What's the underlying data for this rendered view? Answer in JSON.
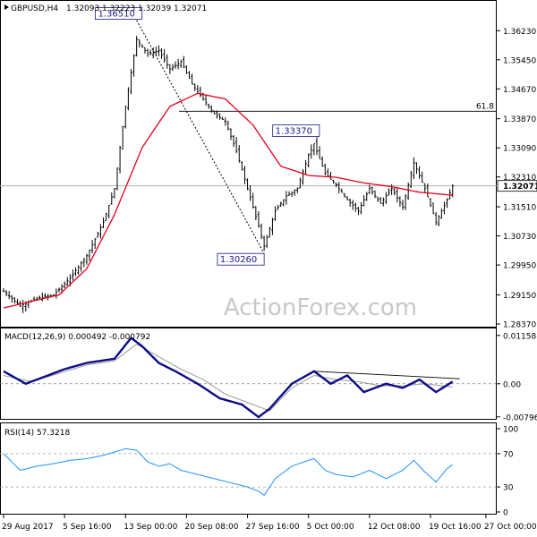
{
  "chart_data": [
    {
      "type": "candlestick",
      "header": {
        "symbol": "GBPUSD,H4",
        "ohlc": [
          "1.32093",
          "1.32223",
          "1.32039",
          "1.32071"
        ]
      },
      "watermark": "ActionForex.com",
      "ylim": [
        1.2837,
        1.3662
      ],
      "y_ticks": [
        "1.36230",
        "1.35450",
        "1.34670",
        "1.33870",
        "1.33090",
        "1.32310",
        "1.31510",
        "1.30730",
        "1.29950",
        "1.29150",
        "1.28370"
      ],
      "y_tick_values": [
        1.3623,
        1.3545,
        1.3467,
        1.3387,
        1.3309,
        1.3231,
        1.3151,
        1.3073,
        1.2995,
        1.2915,
        1.2837
      ],
      "current_price_label": "1.32071",
      "current_price": 1.32071,
      "fib_level": {
        "label": "61.8",
        "value": 1.3407
      },
      "annotations": [
        {
          "label": "1.36510",
          "value": 1.3651,
          "bar": 48
        },
        {
          "label": "1.33370",
          "value": 1.3337,
          "bar": 112
        },
        {
          "label": "1.30260",
          "value": 1.3026,
          "bar": 94
        }
      ],
      "price_anchors": [
        [
          0,
          1.2925
        ],
        [
          6,
          1.2885
        ],
        [
          12,
          1.2905
        ],
        [
          18,
          1.2915
        ],
        [
          24,
          1.296
        ],
        [
          30,
          1.302
        ],
        [
          36,
          1.311
        ],
        [
          40,
          1.32
        ],
        [
          44,
          1.342
        ],
        [
          48,
          1.36
        ],
        [
          52,
          1.356
        ],
        [
          56,
          1.357
        ],
        [
          60,
          1.352
        ],
        [
          64,
          1.354
        ],
        [
          68,
          1.348
        ],
        [
          72,
          1.344
        ],
        [
          76,
          1.34
        ],
        [
          80,
          1.338
        ],
        [
          84,
          1.33
        ],
        [
          88,
          1.32
        ],
        [
          92,
          1.31
        ],
        [
          94,
          1.3045
        ],
        [
          98,
          1.314
        ],
        [
          102,
          1.318
        ],
        [
          106,
          1.32
        ],
        [
          110,
          1.329
        ],
        [
          112,
          1.332
        ],
        [
          116,
          1.324
        ],
        [
          120,
          1.321
        ],
        [
          124,
          1.317
        ],
        [
          128,
          1.314
        ],
        [
          132,
          1.32
        ],
        [
          136,
          1.316
        ],
        [
          140,
          1.32
        ],
        [
          144,
          1.315
        ],
        [
          148,
          1.327
        ],
        [
          152,
          1.32
        ],
        [
          156,
          1.311
        ],
        [
          160,
          1.317
        ],
        [
          162,
          1.3207
        ]
      ],
      "ma_anchors": [
        [
          0,
          1.288
        ],
        [
          20,
          1.2915
        ],
        [
          30,
          1.2985
        ],
        [
          40,
          1.313
        ],
        [
          50,
          1.331
        ],
        [
          60,
          1.342
        ],
        [
          70,
          1.3455
        ],
        [
          80,
          1.344
        ],
        [
          90,
          1.337
        ],
        [
          100,
          1.326
        ],
        [
          110,
          1.3235
        ],
        [
          120,
          1.323
        ],
        [
          130,
          1.3215
        ],
        [
          140,
          1.3205
        ],
        [
          150,
          1.319
        ],
        [
          162,
          1.3182
        ]
      ],
      "trendline": [
        [
          48,
          1.3651
        ],
        [
          94,
          1.3026
        ]
      ]
    },
    {
      "type": "line",
      "title": "MACD(12,26,9) 0.000492 -0.000792",
      "ylim": [
        -0.008,
        0.0122
      ],
      "y_ticks": [
        "0.011588",
        "0.00",
        "-0.007961"
      ],
      "y_tick_values": [
        0.011588,
        0.0,
        -0.007961
      ],
      "series": [
        {
          "anchors": [
            [
              0,
              0.003
            ],
            [
              8,
              0.0
            ],
            [
              16,
              0.002
            ],
            [
              22,
              0.0035
            ],
            [
              30,
              0.005
            ],
            [
              40,
              0.006
            ],
            [
              46,
              0.011
            ],
            [
              50,
              0.009
            ],
            [
              56,
              0.005
            ],
            [
              62,
              0.003
            ],
            [
              70,
              0.0
            ],
            [
              78,
              -0.0035
            ],
            [
              86,
              -0.005
            ],
            [
              92,
              -0.008
            ],
            [
              96,
              -0.006
            ],
            [
              104,
              0.0
            ],
            [
              112,
              0.003
            ],
            [
              118,
              0.0
            ],
            [
              124,
              0.002
            ],
            [
              130,
              -0.002
            ],
            [
              138,
              0.0
            ],
            [
              144,
              -0.001
            ],
            [
              150,
              0.001
            ],
            [
              156,
              -0.002
            ],
            [
              162,
              0.0005
            ]
          ]
        },
        {
          "anchors": [
            [
              0,
              0.002
            ],
            [
              10,
              0.0005
            ],
            [
              20,
              0.0025
            ],
            [
              30,
              0.0045
            ],
            [
              40,
              0.0055
            ],
            [
              48,
              0.0095
            ],
            [
              56,
              0.0065
            ],
            [
              64,
              0.0035
            ],
            [
              72,
              0.001
            ],
            [
              80,
              -0.0025
            ],
            [
              88,
              -0.0045
            ],
            [
              96,
              -0.0065
            ],
            [
              104,
              -0.001
            ],
            [
              112,
              0.002
            ],
            [
              120,
              0.001
            ],
            [
              128,
              0.0005
            ],
            [
              136,
              -0.0005
            ],
            [
              144,
              -0.0005
            ],
            [
              152,
              0.0
            ],
            [
              162,
              -0.0008
            ]
          ]
        }
      ],
      "trendline": [
        [
          112,
          0.003
        ],
        [
          162,
          0.0012
        ]
      ]
    },
    {
      "type": "line",
      "title": "RSI(14) 57.3218",
      "ylim": [
        0,
        100
      ],
      "y_ticks": [
        "100",
        "70",
        "30",
        "0"
      ],
      "y_tick_values": [
        100,
        70,
        30,
        0
      ],
      "levels": [
        70,
        30
      ],
      "series": [
        {
          "anchors": [
            [
              0,
              70
            ],
            [
              6,
              50
            ],
            [
              12,
              55
            ],
            [
              18,
              58
            ],
            [
              24,
              62
            ],
            [
              30,
              64
            ],
            [
              36,
              68
            ],
            [
              40,
              72
            ],
            [
              44,
              76
            ],
            [
              48,
              74
            ],
            [
              52,
              60
            ],
            [
              56,
              55
            ],
            [
              60,
              58
            ],
            [
              64,
              50
            ],
            [
              70,
              45
            ],
            [
              76,
              40
            ],
            [
              82,
              35
            ],
            [
              88,
              30
            ],
            [
              92,
              25
            ],
            [
              94,
              20
            ],
            [
              98,
              40
            ],
            [
              104,
              55
            ],
            [
              110,
              62
            ],
            [
              112,
              64
            ],
            [
              116,
              50
            ],
            [
              120,
              45
            ],
            [
              126,
              42
            ],
            [
              132,
              50
            ],
            [
              138,
              40
            ],
            [
              144,
              50
            ],
            [
              148,
              62
            ],
            [
              152,
              48
            ],
            [
              156,
              36
            ],
            [
              160,
              52
            ],
            [
              162,
              57
            ]
          ]
        }
      ]
    }
  ],
  "x_ticks": [
    "29 Aug 2017",
    "5 Sep 16:00",
    "13 Sep 00:00",
    "20 Sep 08:00",
    "27 Sep 16:00",
    "5 Oct 00:00",
    "12 Oct 08:00",
    "19 Oct 16:00",
    "27 Oct 00:00"
  ],
  "x_tick_bars": [
    0,
    22,
    44,
    66,
    88,
    110,
    132,
    154,
    174
  ]
}
